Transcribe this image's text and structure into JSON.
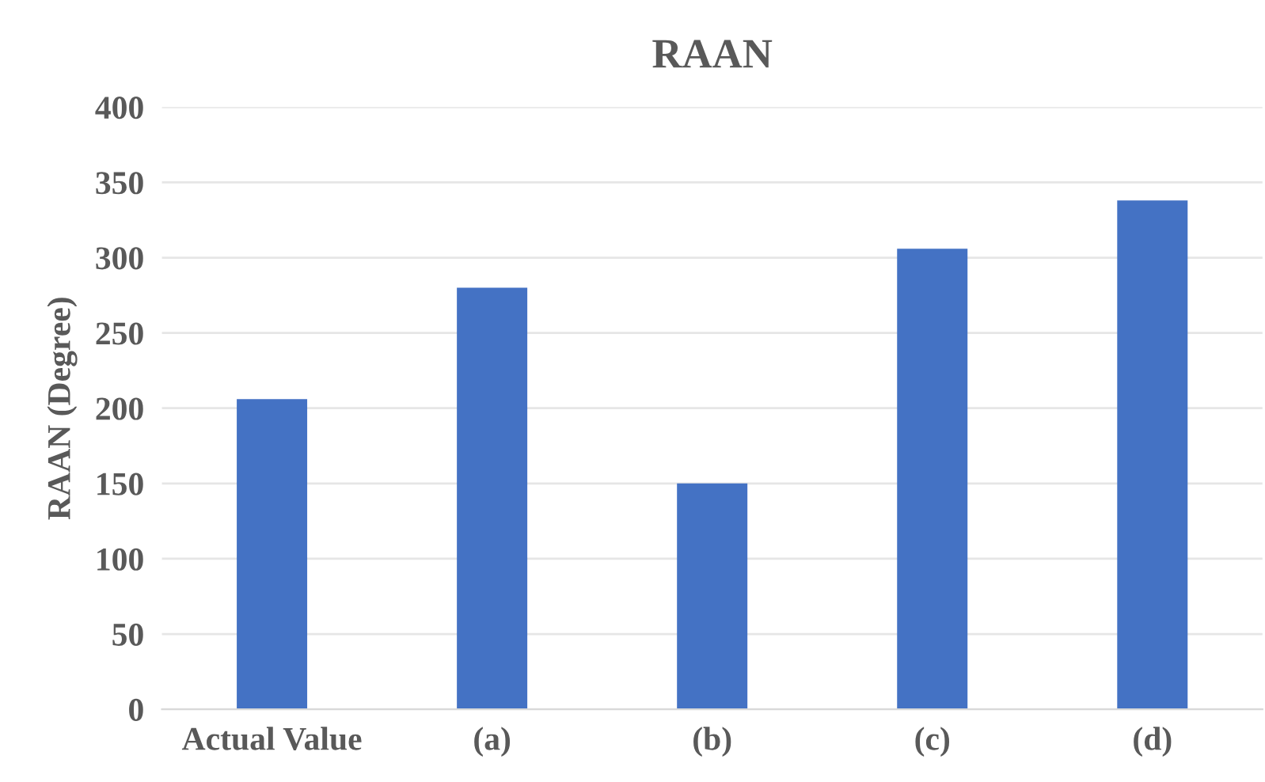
{
  "chart_data": {
    "type": "bar",
    "title": "RAAN",
    "ylabel": "RAAN (Degree)",
    "categories": [
      "Actual Value",
      "(a)",
      "(b)",
      "(c)",
      "(d)"
    ],
    "values": [
      206,
      280,
      150,
      306,
      338
    ],
    "color": "#4472c4",
    "ylim": [
      0,
      400
    ],
    "yticks": [
      0,
      50,
      100,
      150,
      200,
      250,
      300,
      350,
      400
    ],
    "grid": "y",
    "legend": false
  }
}
